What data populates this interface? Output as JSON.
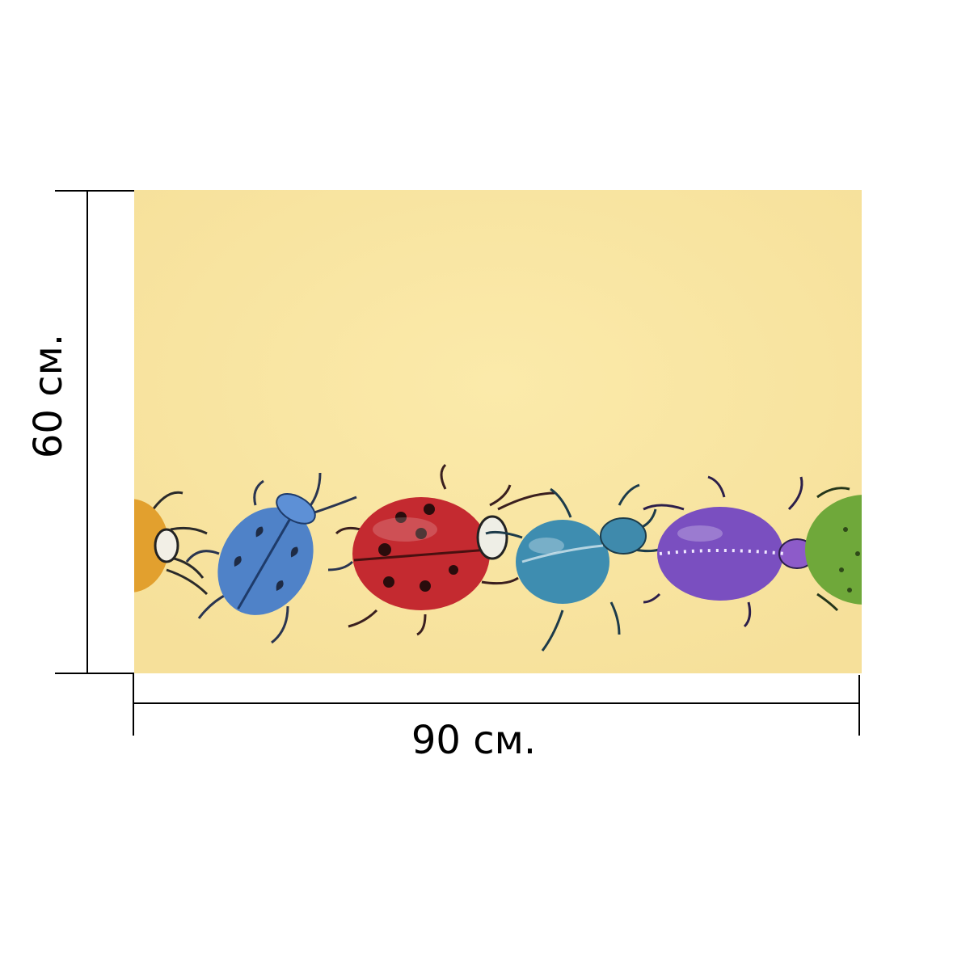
{
  "dimensions": {
    "width_label": "90 см.",
    "height_label": "60 см."
  },
  "artwork": {
    "background_color": "#f9e7a3",
    "beetles": [
      {
        "name": "orange-beetle",
        "color": "#e2a02e"
      },
      {
        "name": "blue-heart-beetle",
        "color": "#4f82c8"
      },
      {
        "name": "red-ladybug",
        "color": "#c42a30"
      },
      {
        "name": "teal-beetle",
        "color": "#3e8db0"
      },
      {
        "name": "purple-beetle",
        "color": "#7a4fc0"
      },
      {
        "name": "green-beetle",
        "color": "#6fa83a"
      }
    ]
  }
}
